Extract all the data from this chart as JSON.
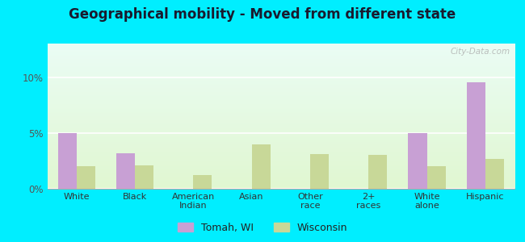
{
  "title": "Geographical mobility - Moved from different state",
  "categories": [
    "White",
    "Black",
    "American\nIndian",
    "Asian",
    "Other\nrace",
    "2+\nraces",
    "White\nalone",
    "Hispanic"
  ],
  "tomah_values": [
    5.0,
    3.2,
    0.0,
    0.0,
    0.0,
    0.0,
    5.0,
    9.5
  ],
  "wisconsin_values": [
    2.0,
    2.1,
    1.2,
    4.0,
    3.1,
    3.0,
    2.0,
    2.7
  ],
  "tomah_color": "#c8a0d4",
  "wisconsin_color": "#c8d898",
  "ylim": [
    0,
    13
  ],
  "yticks": [
    0,
    5,
    10
  ],
  "ytick_labels": [
    "0%",
    "5%",
    "10%"
  ],
  "outer_background": "#00eeff",
  "bar_width": 0.32,
  "legend_tomah": "Tomah, WI",
  "legend_wisconsin": "Wisconsin",
  "watermark": "City-Data.com"
}
